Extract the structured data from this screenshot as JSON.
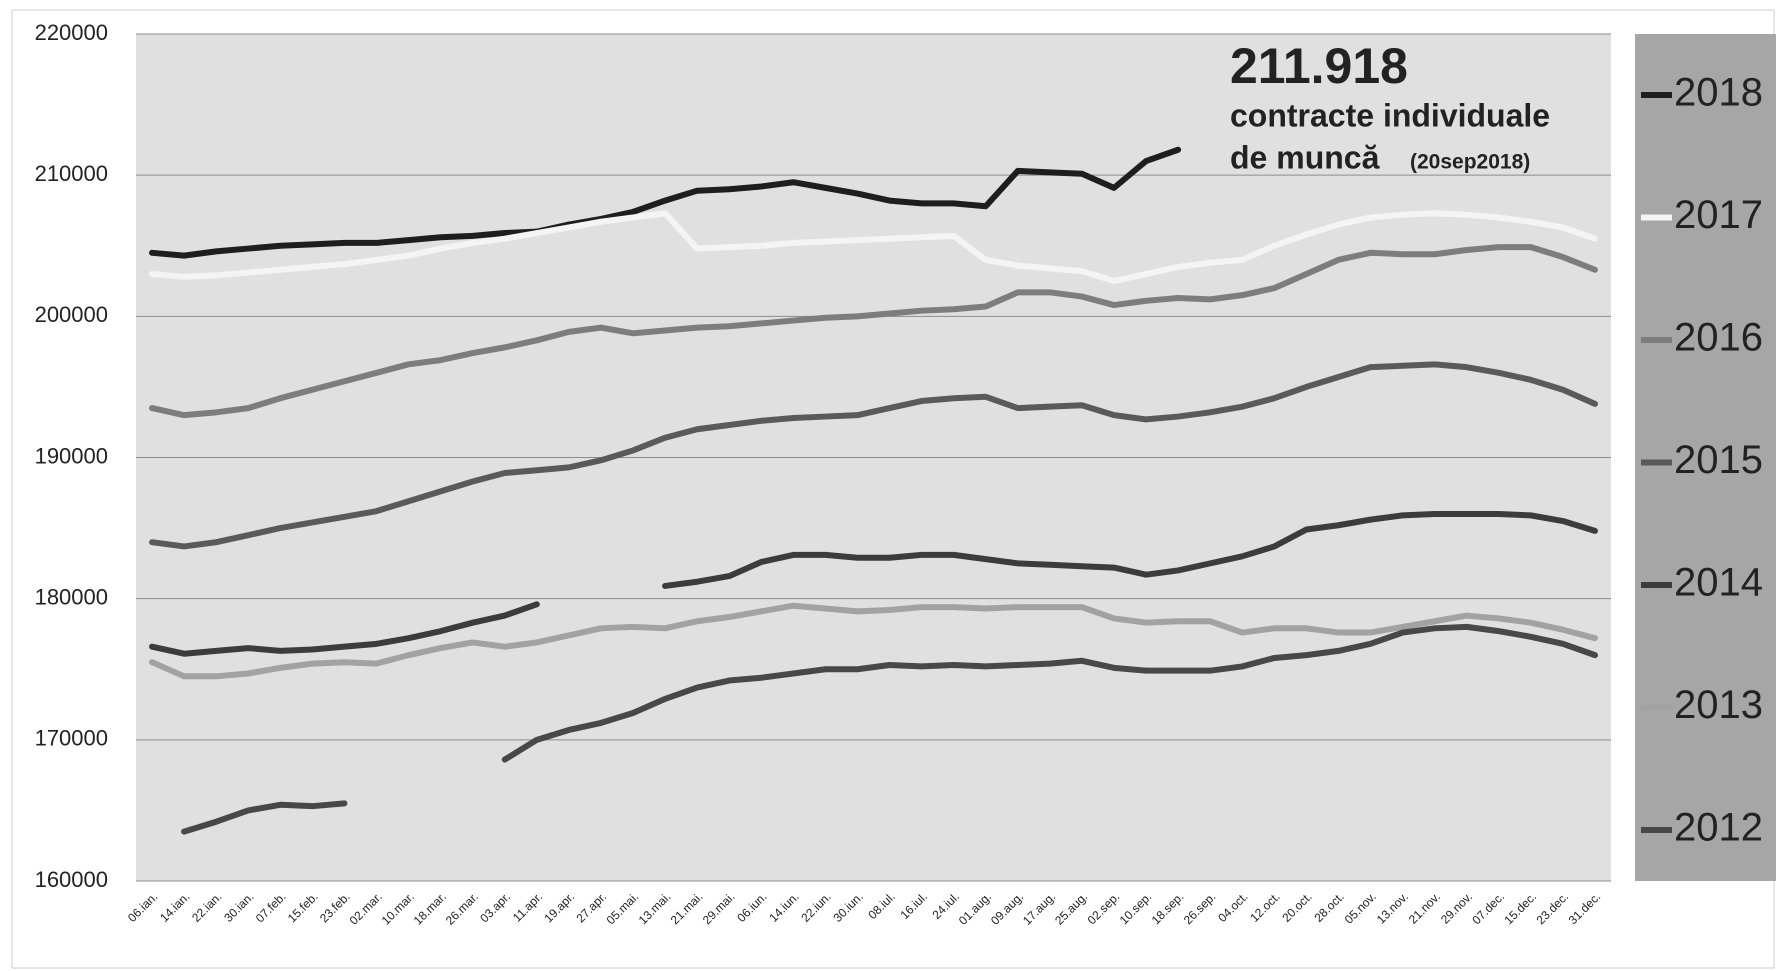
{
  "chart_data": {
    "type": "line",
    "annotation": {
      "value": "211.918",
      "lines": [
        "contracte individuale",
        "de muncă"
      ],
      "note": "(20sep2018)"
    },
    "categories": [
      "06.ian.",
      "14.ian.",
      "22.ian.",
      "30.ian.",
      "07.feb.",
      "15.feb.",
      "23.feb.",
      "02.mar.",
      "10.mar.",
      "18.mar.",
      "26.mar.",
      "03.apr.",
      "11.apr.",
      "19.apr.",
      "27.apr.",
      "05.mai.",
      "13.mai.",
      "21.mai.",
      "29.mai.",
      "06.iun.",
      "14.iun.",
      "22.iun.",
      "30.iun.",
      "08.iul.",
      "16.iul.",
      "24.iul.",
      "01.aug.",
      "09.aug.",
      "17.aug.",
      "25.aug.",
      "02.sep.",
      "10.sep.",
      "18.sep.",
      "26.sep.",
      "04.oct.",
      "12.oct.",
      "20.oct.",
      "28.oct.",
      "05.nov.",
      "13.nov.",
      "21.nov.",
      "29.nov.",
      "07.dec.",
      "15.dec.",
      "23.dec.",
      "31.dec."
    ],
    "series": [
      {
        "name": "2018",
        "color": "#1e1e1e",
        "values": [
          204500,
          204300,
          204600,
          204800,
          205000,
          205100,
          205200,
          205200,
          205400,
          205600,
          205700,
          205900,
          206000,
          206500,
          206900,
          207400,
          208200,
          208900,
          209000,
          209200,
          209500,
          209100,
          208700,
          208200,
          208000,
          208000,
          207800,
          210300,
          210200,
          210100,
          209100,
          211000,
          211800,
          null,
          null,
          null,
          null,
          null,
          null,
          null,
          null,
          null,
          null,
          null,
          null,
          null
        ]
      },
      {
        "name": "2017",
        "color": "#f4f4f4",
        "values": [
          203000,
          202800,
          202900,
          203100,
          203300,
          203500,
          203700,
          204000,
          204300,
          204800,
          205200,
          205500,
          205900,
          206300,
          206700,
          207000,
          207300,
          204800,
          204900,
          205000,
          205200,
          205300,
          205400,
          205500,
          205600,
          205700,
          204000,
          203600,
          203400,
          203200,
          202500,
          203000,
          203500,
          203800,
          204000,
          205000,
          205800,
          206500,
          207000,
          207200,
          207300,
          207200,
          207000,
          206700,
          206300,
          205500
        ]
      },
      {
        "name": "2016",
        "color": "#7d7d7d",
        "values": [
          193500,
          193000,
          193200,
          193500,
          194200,
          194800,
          195400,
          196000,
          196600,
          196900,
          197400,
          197800,
          198300,
          198900,
          199200,
          198800,
          199000,
          199200,
          199300,
          199500,
          199700,
          199900,
          200000,
          200200,
          200400,
          200500,
          200700,
          201700,
          201700,
          201400,
          200800,
          201100,
          201300,
          201200,
          201500,
          202000,
          203000,
          204000,
          204500,
          204400,
          204400,
          204700,
          204900,
          204900,
          204200,
          203300
        ]
      },
      {
        "name": "2015",
        "color": "#5a5a5a",
        "values": [
          184000,
          183700,
          184000,
          184500,
          185000,
          185400,
          185800,
          186200,
          186900,
          187600,
          188300,
          188900,
          189100,
          189300,
          189800,
          190500,
          191400,
          192000,
          192300,
          192600,
          192800,
          192900,
          193000,
          193500,
          194000,
          194200,
          194300,
          193500,
          193600,
          193700,
          193000,
          192700,
          192900,
          193200,
          193600,
          194200,
          195000,
          195700,
          196400,
          196500,
          196600,
          196400,
          196000,
          195500,
          194800,
          193800
        ]
      },
      {
        "name": "2014",
        "color": "#3c3c3c",
        "values": [
          176600,
          176100,
          176300,
          176500,
          176300,
          176400,
          176600,
          176800,
          177200,
          177700,
          178300,
          178800,
          179600,
          null,
          null,
          null,
          180900,
          181200,
          181600,
          182600,
          183100,
          183100,
          182900,
          182900,
          183100,
          183100,
          182800,
          182500,
          182400,
          182300,
          182200,
          181700,
          182000,
          182500,
          183000,
          183700,
          184900,
          185200,
          185600,
          185900,
          186000,
          186000,
          186000,
          185900,
          185500,
          184800
        ]
      },
      {
        "name": "2013",
        "color": "#a2a2a2",
        "values": [
          175500,
          174500,
          174500,
          174700,
          175100,
          175400,
          175500,
          175400,
          176000,
          176500,
          176900,
          176600,
          176900,
          177400,
          177900,
          178000,
          177900,
          178400,
          178700,
          179100,
          179500,
          179300,
          179100,
          179200,
          179400,
          179400,
          179300,
          179400,
          179400,
          179400,
          178600,
          178300,
          178400,
          178400,
          177600,
          177900,
          177900,
          177600,
          177600,
          178000,
          178400,
          178800,
          178600,
          178300,
          177800,
          177200
        ]
      },
      {
        "name": "2012",
        "color": "#484848",
        "values": [
          null,
          163500,
          164200,
          165000,
          165400,
          165300,
          165500,
          null,
          null,
          null,
          null,
          168600,
          170000,
          170700,
          171200,
          171900,
          172900,
          173700,
          174200,
          174400,
          174700,
          175000,
          175000,
          175300,
          175200,
          175300,
          175200,
          175300,
          175400,
          175600,
          175100,
          174900,
          174900,
          174900,
          175200,
          175800,
          176000,
          176300,
          176800,
          177600,
          177900,
          178000,
          177700,
          177300,
          176800,
          176000
        ]
      }
    ],
    "ylim": [
      160000,
      220000
    ],
    "yticks": [
      160000,
      170000,
      180000,
      190000,
      200000,
      210000,
      220000
    ],
    "grid": true,
    "legend": "right"
  }
}
